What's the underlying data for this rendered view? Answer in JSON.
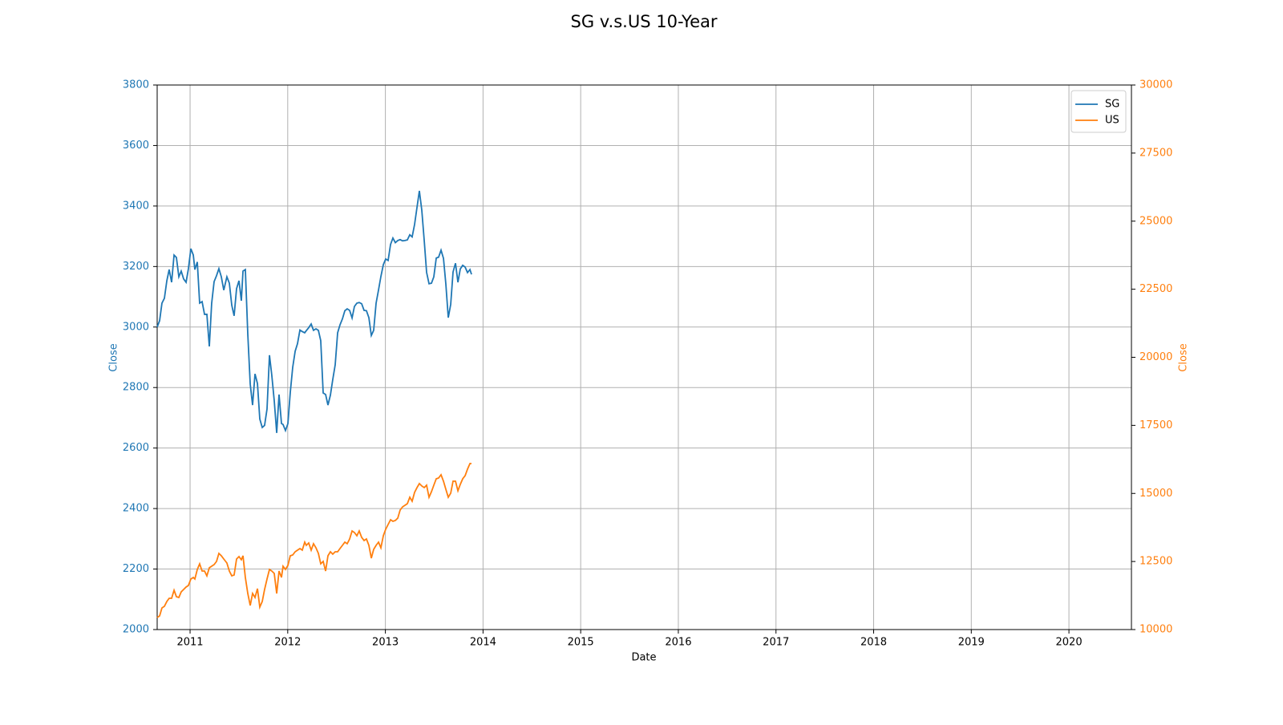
{
  "chart_data": {
    "type": "line",
    "title": "SG v.s.US 10-Year",
    "xlabel": "Date",
    "ylabel": "Close",
    "y2label": "Close",
    "x": [
      2010.663,
      2010.688,
      2010.712,
      2010.737,
      2010.762,
      2010.786,
      2010.811,
      2010.836,
      2010.86,
      2010.885,
      2010.909,
      2010.934,
      2010.959,
      2010.983,
      2011.008,
      2011.033,
      2011.049,
      2011.074,
      2011.098,
      2011.123,
      2011.148,
      2011.172,
      2011.197,
      2011.221,
      2011.246,
      2011.271,
      2011.295,
      2011.32,
      2011.345,
      2011.377,
      2011.402,
      2011.427,
      2011.451,
      2011.476,
      2011.501,
      2011.525,
      2011.542,
      2011.566,
      2011.591,
      2011.616,
      2011.64,
      2011.665,
      2011.69,
      2011.714,
      2011.739,
      2011.763,
      2011.788,
      2011.813,
      2011.837,
      2011.862,
      2011.887,
      2011.911,
      2011.936,
      2011.952,
      2011.977,
      2012.002,
      2012.026,
      2012.051,
      2012.076,
      2012.1,
      2012.125,
      2012.149,
      2012.174,
      2012.19,
      2012.215,
      2012.24,
      2012.264,
      2012.289,
      2012.314,
      2012.338,
      2012.363,
      2012.388,
      2012.412,
      2012.437,
      2012.461,
      2012.486,
      2012.511,
      2012.535,
      2012.56,
      2012.585,
      2012.609,
      2012.634,
      2012.659,
      2012.683,
      2012.708,
      2012.732,
      2012.757,
      2012.782,
      2012.806,
      2012.831,
      2012.856,
      2012.88,
      2012.905,
      2012.93,
      2012.954,
      2012.979,
      2013.003,
      2013.028,
      2013.053,
      2013.077,
      2013.102,
      2013.127,
      2013.151,
      2013.176,
      2013.201,
      2013.225,
      2013.25,
      2013.274,
      2013.299,
      2013.324,
      2013.348,
      2013.373,
      2013.398,
      2013.422,
      2013.447,
      2013.472,
      2013.496,
      2013.521,
      2013.545,
      2013.57,
      2013.595,
      2013.619,
      2013.644,
      2013.669,
      2013.693,
      2013.718,
      2013.743,
      2013.767,
      2013.792,
      2013.817,
      2013.841,
      2013.866,
      2013.882
    ],
    "series": [
      {
        "name": "SG",
        "color": "#1f77b4",
        "values": [
          3000,
          3021,
          3079,
          3095,
          3153,
          3190,
          3148,
          3238,
          3230,
          3166,
          3185,
          3159,
          3148,
          3193,
          3259,
          3238,
          3190,
          3215,
          3079,
          3084,
          3042,
          3042,
          2936,
          3078,
          3150,
          3170,
          3193,
          3166,
          3122,
          3166,
          3145,
          3072,
          3037,
          3127,
          3153,
          3087,
          3185,
          3190,
          2977,
          2811,
          2742,
          2845,
          2813,
          2696,
          2668,
          2675,
          2729,
          2907,
          2840,
          2756,
          2650,
          2777,
          2681,
          2678,
          2658,
          2681,
          2784,
          2867,
          2920,
          2945,
          2990,
          2985,
          2981,
          2988,
          2998,
          3010,
          2989,
          2994,
          2989,
          2955,
          2782,
          2777,
          2742,
          2775,
          2826,
          2875,
          2981,
          3007,
          3027,
          3054,
          3060,
          3055,
          3030,
          3068,
          3079,
          3081,
          3077,
          3055,
          3054,
          3031,
          2972,
          2989,
          3079,
          3123,
          3167,
          3206,
          3225,
          3220,
          3273,
          3294,
          3279,
          3286,
          3289,
          3285,
          3286,
          3288,
          3305,
          3298,
          3339,
          3396,
          3450,
          3386,
          3285,
          3181,
          3143,
          3145,
          3166,
          3228,
          3231,
          3254,
          3227,
          3143,
          3031,
          3075,
          3182,
          3211,
          3148,
          3192,
          3204,
          3198,
          3180,
          3190,
          3174
        ]
      },
      {
        "name": "US",
        "color": "#ff7f0e",
        "axis": "y2",
        "values": [
          10442,
          10501,
          10795,
          10854,
          11031,
          11149,
          11149,
          11443,
          11208,
          11178,
          11384,
          11473,
          11561,
          11620,
          11856,
          11915,
          11856,
          12209,
          12415,
          12150,
          12150,
          11973,
          12268,
          12327,
          12386,
          12503,
          12798,
          12710,
          12592,
          12445,
          12150,
          11973,
          12003,
          12592,
          12680,
          12563,
          12710,
          11915,
          11326,
          10884,
          11326,
          11178,
          11502,
          10825,
          11031,
          11473,
          11856,
          12209,
          12150,
          12061,
          11326,
          12150,
          11915,
          12327,
          12209,
          12356,
          12710,
          12739,
          12857,
          12916,
          12975,
          12916,
          13211,
          13093,
          13181,
          12916,
          13152,
          13004,
          12798,
          12415,
          12503,
          12150,
          12710,
          12857,
          12769,
          12857,
          12857,
          12975,
          13093,
          13211,
          13152,
          13328,
          13623,
          13564,
          13446,
          13623,
          13387,
          13270,
          13328,
          13093,
          12622,
          12945,
          13093,
          13211,
          13004,
          13446,
          13682,
          13859,
          14035,
          13976,
          14006,
          14094,
          14389,
          14507,
          14565,
          14624,
          14860,
          14713,
          15037,
          15214,
          15361,
          15273,
          15214,
          15302,
          14860,
          15066,
          15302,
          15538,
          15567,
          15685,
          15449,
          15155,
          14860,
          15008,
          15449,
          15449,
          15096,
          15332,
          15538,
          15655,
          15891,
          16097,
          16097
        ]
      }
    ],
    "xlim": [
      2010.663,
      2020.64
    ],
    "xticks": [
      2011,
      2012,
      2013,
      2014,
      2015,
      2016,
      2017,
      2018,
      2019,
      2020
    ],
    "ylim": [
      2000,
      3800
    ],
    "yticks": [
      2000,
      2200,
      2400,
      2600,
      2800,
      3000,
      3200,
      3400,
      3600,
      3800
    ],
    "y2lim": [
      10000,
      30000
    ],
    "y2ticks": [
      10000,
      12500,
      15000,
      17500,
      20000,
      22500,
      25000,
      27500,
      30000
    ],
    "grid": true,
    "legend": "upper right"
  }
}
